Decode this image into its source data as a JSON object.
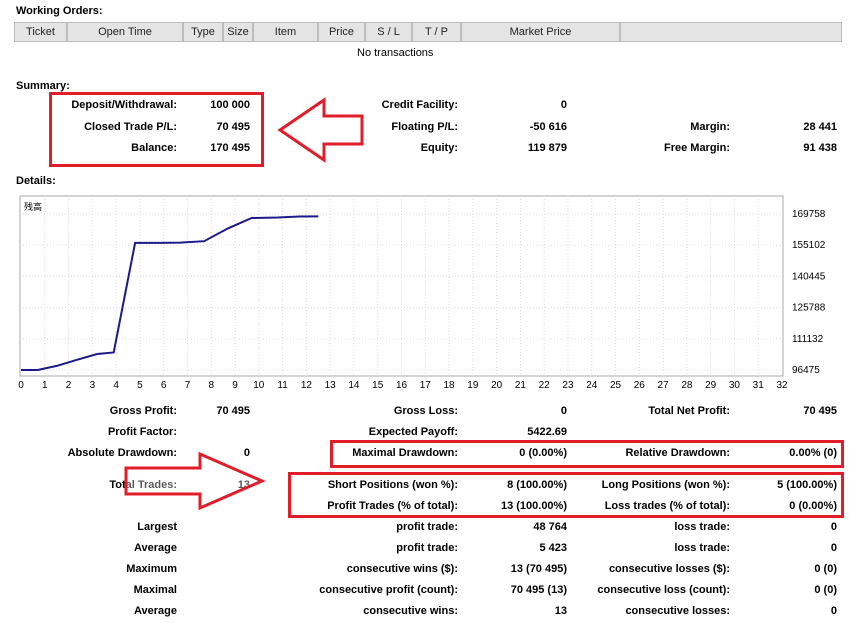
{
  "working_orders": {
    "title": "Working Orders:",
    "columns": [
      "Ticket",
      "Open Time",
      "Type",
      "Size",
      "Item",
      "Price",
      "S / L",
      "T / P",
      "Market Price"
    ],
    "empty_text": "No transactions"
  },
  "summary": {
    "title": "Summary:",
    "deposit_label": "Deposit/Withdrawal:",
    "deposit_value": "100 000",
    "closed_label": "Closed Trade P/L:",
    "closed_value": "70 495",
    "balance_label": "Balance:",
    "balance_value": "170 495",
    "credit_label": "Credit Facility:",
    "credit_value": "0",
    "floating_label": "Floating P/L:",
    "floating_value": "-50 616",
    "equity_label": "Equity:",
    "equity_value": "119 879",
    "margin_label": "Margin:",
    "margin_value": "28 441",
    "free_margin_label": "Free Margin:",
    "free_margin_value": "91 438"
  },
  "details": {
    "title": "Details:",
    "gross_profit_label": "Gross Profit:",
    "gross_profit_value": "70 495",
    "gross_loss_label": "Gross Loss:",
    "gross_loss_value": "0",
    "total_net_label": "Total Net Profit:",
    "total_net_value": "70 495",
    "profit_factor_label": "Profit Factor:",
    "expected_payoff_label": "Expected Payoff:",
    "expected_payoff_value": "5422.69",
    "abs_dd_label": "Absolute Drawdown:",
    "abs_dd_value": "0",
    "max_dd_label": "Maximal Drawdown:",
    "max_dd_value": "0 (0.00%)",
    "rel_dd_label": "Relative Drawdown:",
    "rel_dd_value": "0.00% (0)",
    "total_trades_label": "Total Trades:",
    "total_trades_value": "13",
    "short_label": "Short Positions (won %):",
    "short_value": "8 (100.00%)",
    "long_label": "Long Positions (won %):",
    "long_value": "5 (100.00%)",
    "profit_trades_label": "Profit Trades (% of total):",
    "profit_trades_value": "13 (100.00%)",
    "loss_trades_label": "Loss trades (% of total):",
    "loss_trades_value": "0 (0.00%)",
    "rows": [
      {
        "cat": "Largest",
        "l1": "profit trade:",
        "v1": "48 764",
        "l2": "loss trade:",
        "v2": "0"
      },
      {
        "cat": "Average",
        "l1": "profit trade:",
        "v1": "5 423",
        "l2": "loss trade:",
        "v2": "0"
      },
      {
        "cat": "Maximum",
        "l1": "consecutive wins ($):",
        "v1": "13 (70 495)",
        "l2": "consecutive losses ($):",
        "v2": "0 (0)"
      },
      {
        "cat": "Maximal",
        "l1": "consecutive profit (count):",
        "v1": "70 495 (13)",
        "l2": "consecutive loss (count):",
        "v2": "0 (0)"
      },
      {
        "cat": "Average",
        "l1": "consecutive wins:",
        "v1": "13",
        "l2": "consecutive losses:",
        "v2": "0"
      }
    ]
  },
  "chart_data": {
    "type": "line",
    "legend_label": "残高",
    "x_ticks": [
      0,
      1,
      2,
      3,
      4,
      5,
      6,
      7,
      8,
      9,
      10,
      11,
      12,
      13,
      14,
      15,
      16,
      17,
      18,
      19,
      20,
      21,
      22,
      23,
      24,
      25,
      26,
      27,
      28,
      29,
      30,
      31,
      32
    ],
    "y_ticks": [
      "169758",
      "155102",
      "140445",
      "125788",
      "111132",
      "96475"
    ],
    "xlim": [
      0,
      32
    ],
    "ylim": [
      96475,
      169758
    ],
    "line_color": "#1a1a8c",
    "series": [
      {
        "x": [
          0,
          0.7,
          1.5,
          2.3,
          3.2,
          3.9,
          4.8,
          5.8,
          6.7,
          7.7,
          8.7,
          9.7,
          10.8,
          11.7,
          12.5
        ],
        "y": [
          96475,
          96475,
          98400,
          101100,
          104000,
          104700,
          156200,
          156200,
          156300,
          157000,
          163000,
          167900,
          168100,
          168600,
          168650
        ]
      }
    ]
  },
  "colors": {
    "highlight": "#e21d2a",
    "header_bg": "#e4e4e4"
  }
}
